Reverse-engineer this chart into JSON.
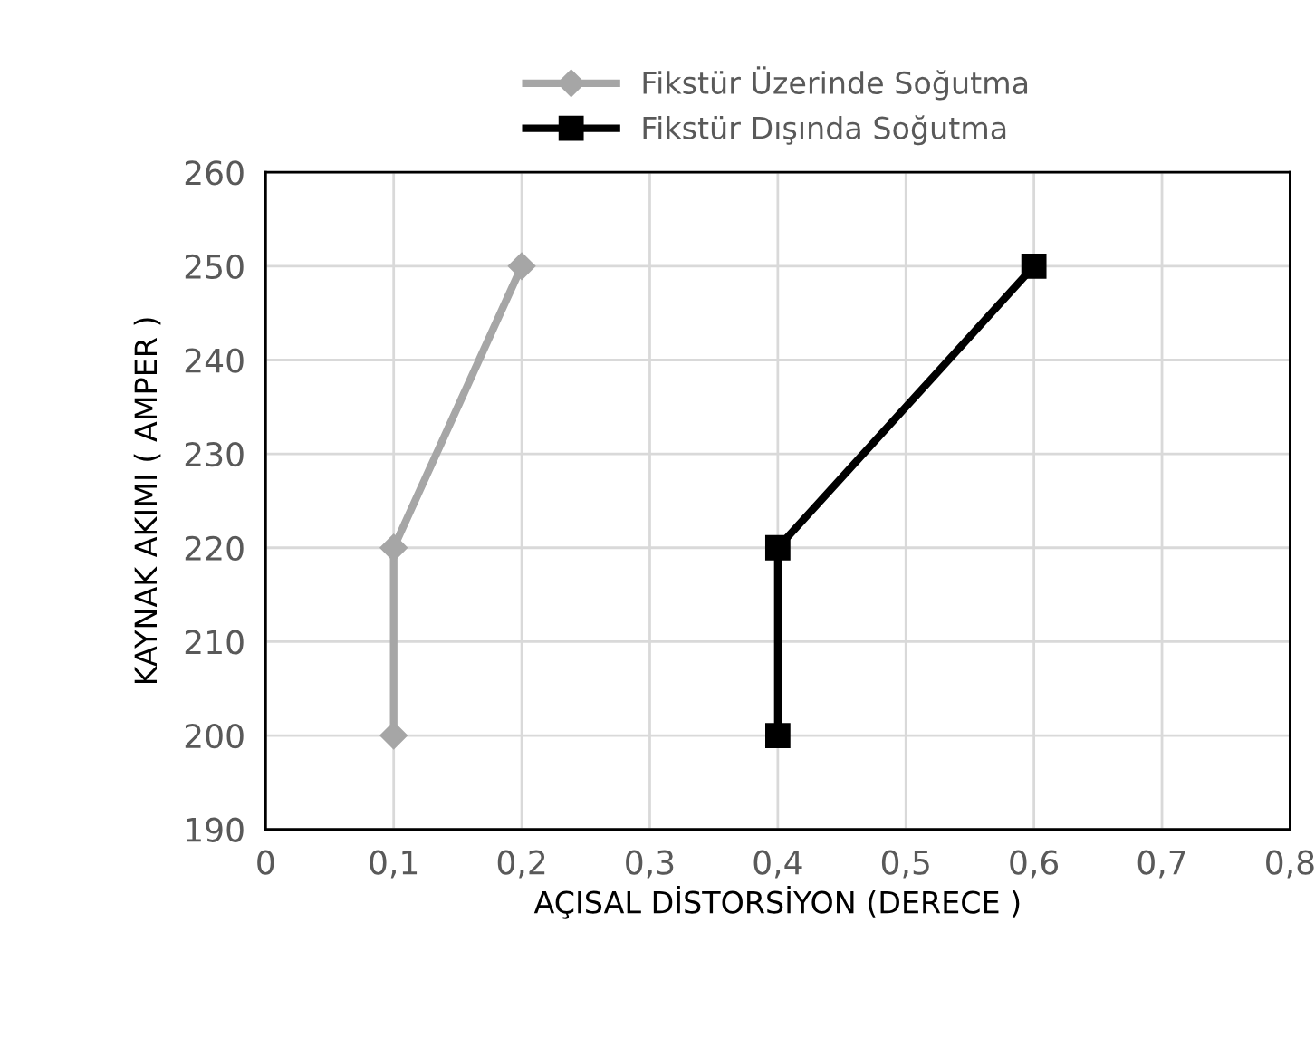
{
  "chart_data": {
    "type": "line",
    "xlabel": "AÇISAL DİSTORSİYON (DERECE )",
    "ylabel": "KAYNAK AKIMI ( AMPER )",
    "xlim": [
      0,
      0.8
    ],
    "xticks": [
      0,
      {
        "value": 0.1,
        "label": "0,1"
      },
      {
        "value": 0.2,
        "label": "0,2"
      },
      {
        "value": 0.3,
        "label": "0,3"
      },
      {
        "value": 0.4,
        "label": "0,4"
      },
      {
        "value": 0.5,
        "label": "0,5"
      },
      {
        "value": 0.6,
        "label": "0,6"
      },
      {
        "value": 0.7,
        "label": "0,7"
      },
      {
        "value": 0.8,
        "label": "0,8"
      }
    ],
    "ylim": [
      190,
      260
    ],
    "yticks": [
      190,
      200,
      210,
      220,
      230,
      240,
      250,
      260
    ],
    "grid": true,
    "legend": "top",
    "line_style": "solid",
    "series": [
      {
        "name": "Fikstür Üzerinde Soğutma",
        "color": "#a6a6a6",
        "marker": "diamond",
        "x": [
          0.1,
          0.1,
          0.2
        ],
        "values": [
          200,
          220,
          250
        ]
      },
      {
        "name": "Fikstür Dışında Soğutma",
        "color": "#000000",
        "marker": "square",
        "x": [
          0.4,
          0.4,
          0.6
        ],
        "values": [
          200,
          220,
          250
        ]
      }
    ]
  }
}
